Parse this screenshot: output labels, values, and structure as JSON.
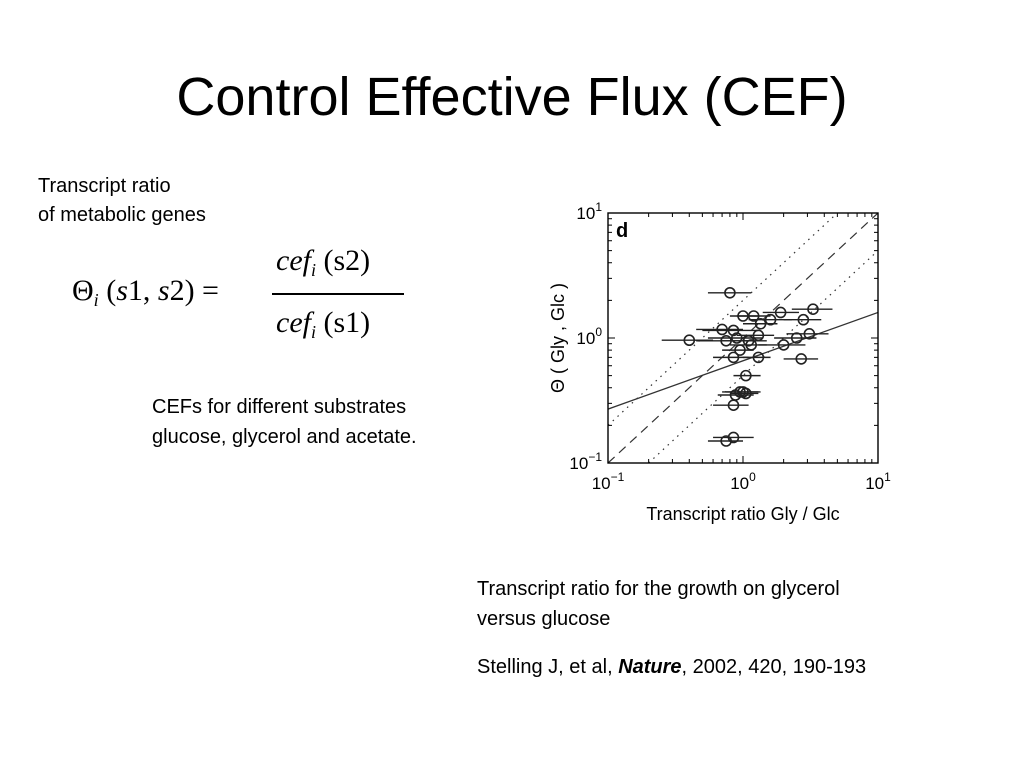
{
  "slide": {
    "title": "Control Effective Flux (CEF)",
    "left_note": [
      "Transcript ratio",
      "of metabolic genes"
    ],
    "formula": {
      "theta": "Θ",
      "sub_i": "i",
      "args_open": "(",
      "s1": "s",
      "one": "1,",
      "s2": "s",
      "two": "2) =",
      "num_cef": "cef",
      "num_args": "(s2)",
      "den_cef": "cef",
      "den_args": "(s1)"
    },
    "cef_note": [
      "CEFs for different substrates",
      "glucose, glycerol and acetate."
    ],
    "caption": [
      "Transcript ratio for the growth on glycerol",
      "versus glucose"
    ],
    "citation": {
      "prefix": "Stelling J, et al, ",
      "journal": "Nature",
      "suffix": ", 2002, 420, 190-193"
    }
  },
  "chart_data": {
    "type": "scatter",
    "panel_label": "d",
    "xlabel": "Transcript ratio Gly / Glc",
    "ylabel": "Θ ( Gly , Glc )",
    "xscale": "log",
    "yscale": "log",
    "xlim": [
      0.1,
      10
    ],
    "ylim": [
      0.1,
      10
    ],
    "xticks": [
      {
        "base": "10",
        "exp": "−1"
      },
      {
        "base": "10",
        "exp": "0"
      },
      {
        "base": "10",
        "exp": "1"
      }
    ],
    "yticks": [
      {
        "base": "10",
        "exp": "−1"
      },
      {
        "base": "10",
        "exp": "0"
      },
      {
        "base": "10",
        "exp": "1"
      }
    ],
    "grid": false,
    "points": [
      {
        "x": 0.8,
        "y": 2.3,
        "xerr": [
          0.55,
          1.15
        ]
      },
      {
        "x": 1.0,
        "y": 1.5,
        "xerr": [
          0.8,
          1.3
        ]
      },
      {
        "x": 1.2,
        "y": 1.5,
        "xerr": [
          0.9,
          1.6
        ]
      },
      {
        "x": 1.35,
        "y": 1.3,
        "xerr": [
          1.0,
          1.8
        ]
      },
      {
        "x": 1.6,
        "y": 1.4,
        "xerr": [
          1.1,
          2.3
        ]
      },
      {
        "x": 1.9,
        "y": 1.6,
        "xerr": [
          1.4,
          2.6
        ]
      },
      {
        "x": 2.8,
        "y": 1.4,
        "xerr": [
          2.0,
          3.8
        ]
      },
      {
        "x": 3.3,
        "y": 1.7,
        "xerr": [
          2.3,
          4.6
        ]
      },
      {
        "x": 3.1,
        "y": 1.08,
        "xerr": [
          2.1,
          4.3
        ]
      },
      {
        "x": 2.5,
        "y": 1.0,
        "xerr": [
          1.7,
          3.5
        ]
      },
      {
        "x": 2.0,
        "y": 0.88,
        "xerr": [
          1.3,
          2.9
        ]
      },
      {
        "x": 0.4,
        "y": 0.96,
        "xerr": [
          0.25,
          0.6
        ]
      },
      {
        "x": 0.7,
        "y": 1.17,
        "xerr": [
          0.45,
          1.0
        ]
      },
      {
        "x": 0.85,
        "y": 1.15,
        "xerr": [
          0.5,
          1.3
        ]
      },
      {
        "x": 0.9,
        "y": 1.0,
        "xerr": [
          0.55,
          1.4
        ]
      },
      {
        "x": 0.75,
        "y": 0.95,
        "xerr": [
          0.45,
          1.1
        ]
      },
      {
        "x": 1.1,
        "y": 0.95,
        "xerr": [
          0.7,
          1.5
        ]
      },
      {
        "x": 1.3,
        "y": 1.05,
        "xerr": [
          0.9,
          1.7
        ]
      },
      {
        "x": 1.15,
        "y": 0.88,
        "xerr": [
          0.8,
          1.5
        ]
      },
      {
        "x": 0.95,
        "y": 0.8,
        "xerr": [
          0.7,
          1.2
        ]
      },
      {
        "x": 0.85,
        "y": 0.7,
        "xerr": [
          0.6,
          1.1
        ]
      },
      {
        "x": 1.3,
        "y": 0.7,
        "xerr": [
          1.0,
          1.6
        ]
      },
      {
        "x": 2.7,
        "y": 0.68,
        "xerr": [
          2.0,
          3.6
        ]
      },
      {
        "x": 1.05,
        "y": 0.5,
        "xerr": [
          0.85,
          1.35
        ]
      },
      {
        "x": 0.95,
        "y": 0.37,
        "xerr": [
          0.7,
          1.3
        ]
      },
      {
        "x": 1.0,
        "y": 0.37,
        "xerr": [
          0.75,
          1.35
        ]
      },
      {
        "x": 1.05,
        "y": 0.36,
        "xerr": [
          0.8,
          1.3
        ]
      },
      {
        "x": 0.88,
        "y": 0.35,
        "xerr": [
          0.65,
          1.2
        ]
      },
      {
        "x": 0.85,
        "y": 0.29,
        "xerr": [
          0.6,
          1.1
        ]
      },
      {
        "x": 0.85,
        "y": 0.16,
        "xerr": [
          0.6,
          1.2
        ]
      },
      {
        "x": 0.75,
        "y": 0.15,
        "xerr": [
          0.55,
          1.0
        ]
      }
    ],
    "lines": [
      {
        "style": "solid",
        "points": [
          [
            0.1,
            0.27
          ],
          [
            10,
            1.6
          ]
        ]
      },
      {
        "style": "dashed",
        "points": [
          [
            0.1,
            0.1
          ],
          [
            10,
            10
          ]
        ]
      },
      {
        "style": "dotted",
        "points": [
          [
            0.2,
            0.1
          ],
          [
            10,
            5
          ]
        ]
      },
      {
        "style": "dotted",
        "points": [
          [
            0.1,
            0.2
          ],
          [
            5,
            10
          ]
        ]
      }
    ]
  }
}
